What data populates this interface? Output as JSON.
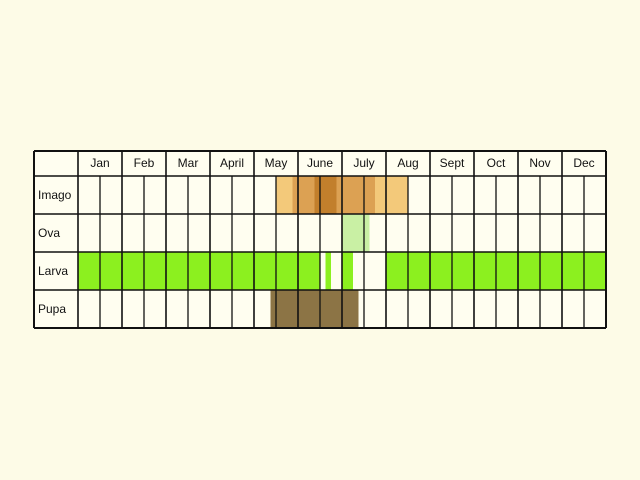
{
  "colors": {
    "background": "#fdfbe7",
    "cell": "#fffef0",
    "grid": "#111111",
    "imago_light": "#f3c97a",
    "imago_mid": "#dca153",
    "imago_dark": "#c27f2c",
    "ova": "#c9f0a4",
    "larva": "#8cf01f",
    "pupa": "#8c7445"
  },
  "months": [
    "Jan",
    "Feb",
    "Mar",
    "April",
    "May",
    "June",
    "July",
    "Aug",
    "Sept",
    "Oct",
    "Nov",
    "Dec"
  ],
  "stages": [
    "Imago",
    "Ova",
    "Larva",
    "Pupa"
  ],
  "chart_data": {
    "type": "table",
    "description_units": "periods counted in month-quarters from Jan 1 (0 = start of Jan, 48 = end of Dec)",
    "rows": [
      {
        "stage": "Imago",
        "periods": [
          {
            "start": 18.0,
            "end": 19.5,
            "color": "imago_light"
          },
          {
            "start": 19.5,
            "end": 21.5,
            "color": "imago_mid"
          },
          {
            "start": 21.5,
            "end": 23.5,
            "color": "imago_dark"
          },
          {
            "start": 23.5,
            "end": 25.5,
            "color": "imago_mid"
          },
          {
            "start": 25.5,
            "end": 27.0,
            "color": "imago_mid"
          },
          {
            "start": 27.0,
            "end": 30.0,
            "color": "imago_light"
          }
        ]
      },
      {
        "stage": "Ova",
        "periods": [
          {
            "start": 24.0,
            "end": 26.5,
            "color": "ova"
          }
        ]
      },
      {
        "stage": "Larva",
        "periods": [
          {
            "start": 0.0,
            "end": 22.0,
            "color": "larva"
          },
          {
            "start": 22.5,
            "end": 23.0,
            "color": "larva"
          },
          {
            "start": 24.0,
            "end": 25.0,
            "color": "larva"
          },
          {
            "start": 28.0,
            "end": 48.0,
            "color": "larva"
          }
        ]
      },
      {
        "stage": "Pupa",
        "periods": [
          {
            "start": 17.5,
            "end": 25.5,
            "color": "pupa"
          }
        ]
      }
    ]
  }
}
